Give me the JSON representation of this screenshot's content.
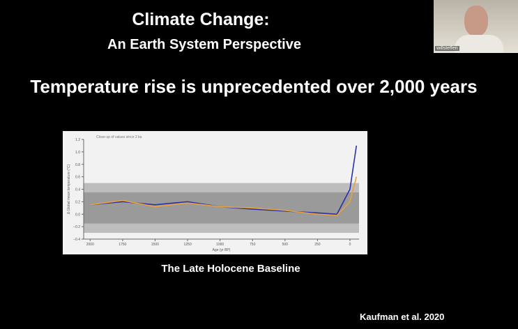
{
  "slide": {
    "title": "Climate Change:",
    "subtitle": "An Earth System Perspective",
    "headline": "Temperature rise is unprecedented over 2,000 years",
    "caption": "The Late Holocene Baseline",
    "citation": "Kaufman et al. 2020"
  },
  "video": {
    "participant": "willsteffen"
  },
  "figure": {
    "annotation": "Close-up of values since 2 ka",
    "xlabel": "Age (yr BP)",
    "ylabel": "Δ Global mean temperature (°C)",
    "xlim": [
      2050,
      -70
    ],
    "ylim": [
      -0.4,
      1.2
    ],
    "xticks": [
      2000,
      1750,
      1500,
      1250,
      1000,
      750,
      500,
      250,
      0
    ],
    "yticks": [
      {
        "value": -0.4,
        "label": "−0.4"
      },
      {
        "value": -0.2,
        "label": "−0.2"
      },
      {
        "value": 0,
        "label": "0.0"
      },
      {
        "value": 0.2,
        "label": "0.2"
      },
      {
        "value": 0.4,
        "label": "0.4"
      },
      {
        "value": 0.6,
        "label": "0.6"
      },
      {
        "value": 0.8,
        "label": "0.8"
      },
      {
        "value": 1.0,
        "label": "1.0"
      },
      {
        "value": 1.2,
        "label": "1.2"
      }
    ],
    "x": [
      2000,
      1750,
      1500,
      1250,
      1000,
      750,
      500,
      250,
      100,
      0,
      -50
    ],
    "series": [
      {
        "color": "#2b2fa8",
        "values": [
          0.15,
          0.2,
          0.15,
          0.2,
          0.12,
          0.08,
          0.05,
          0.02,
          0.0,
          0.4,
          1.1
        ]
      },
      {
        "color": "#e8a23a",
        "values": [
          0.15,
          0.22,
          0.12,
          0.18,
          0.12,
          0.1,
          0.06,
          0.0,
          -0.02,
          0.2,
          0.6
        ]
      }
    ]
  }
}
